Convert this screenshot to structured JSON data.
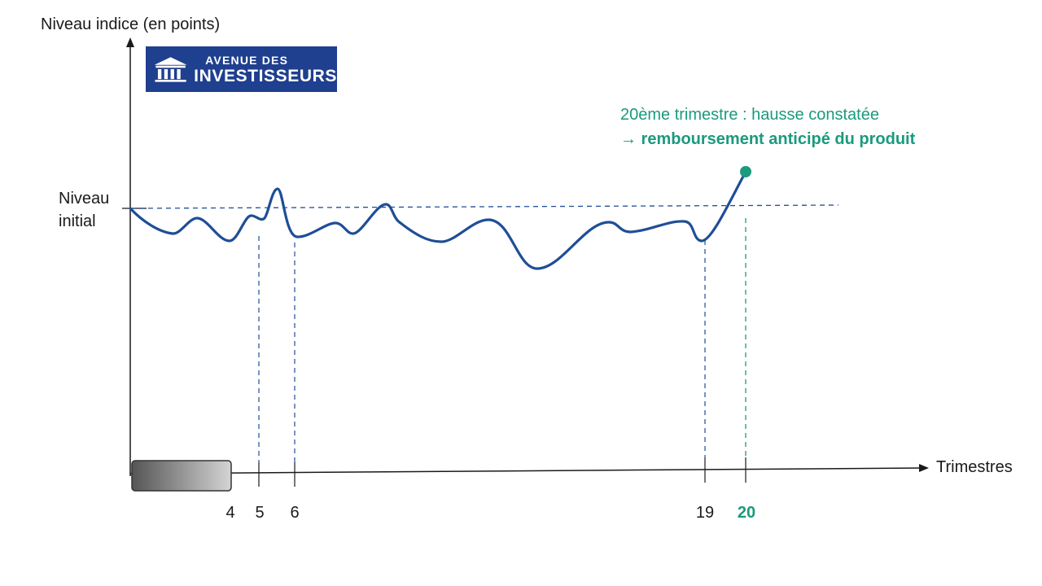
{
  "chart_data": {
    "type": "line",
    "ylabel": "Niveau indice (en points)",
    "xlabel": "Trimestres",
    "reference_line": {
      "label": "Niveau initial"
    },
    "series": [
      {
        "x": [
          0,
          2,
          4,
          4.7,
          5,
          5.5,
          6,
          8,
          9,
          11,
          13,
          15,
          17,
          19,
          20
        ],
        "y": [
          100,
          97,
          97,
          99,
          98,
          103,
          96,
          98,
          101,
          97,
          91,
          97,
          98,
          96,
          106
        ]
      }
    ],
    "ticks": [
      "4",
      "5",
      "6",
      "19",
      "20"
    ],
    "highlight_tick": "20"
  },
  "y_axis": {
    "title": "Niveau indice (en points)"
  },
  "x_axis": {
    "title": "Trimestres"
  },
  "initial_level": {
    "line1": "Niveau",
    "line2": "initial"
  },
  "logo": {
    "line1": "AVENUE DES",
    "line2": "INVESTISSEURS"
  },
  "annotation": {
    "line1": "20ème trimestre : hausse constatée",
    "line2": "→ remboursement anticipé du produit"
  },
  "colors": {
    "series": "#1f4e96",
    "highlight": "#1a9a7e",
    "axis": "#1a1a1a",
    "logo_bg": "#1f3f8f"
  }
}
